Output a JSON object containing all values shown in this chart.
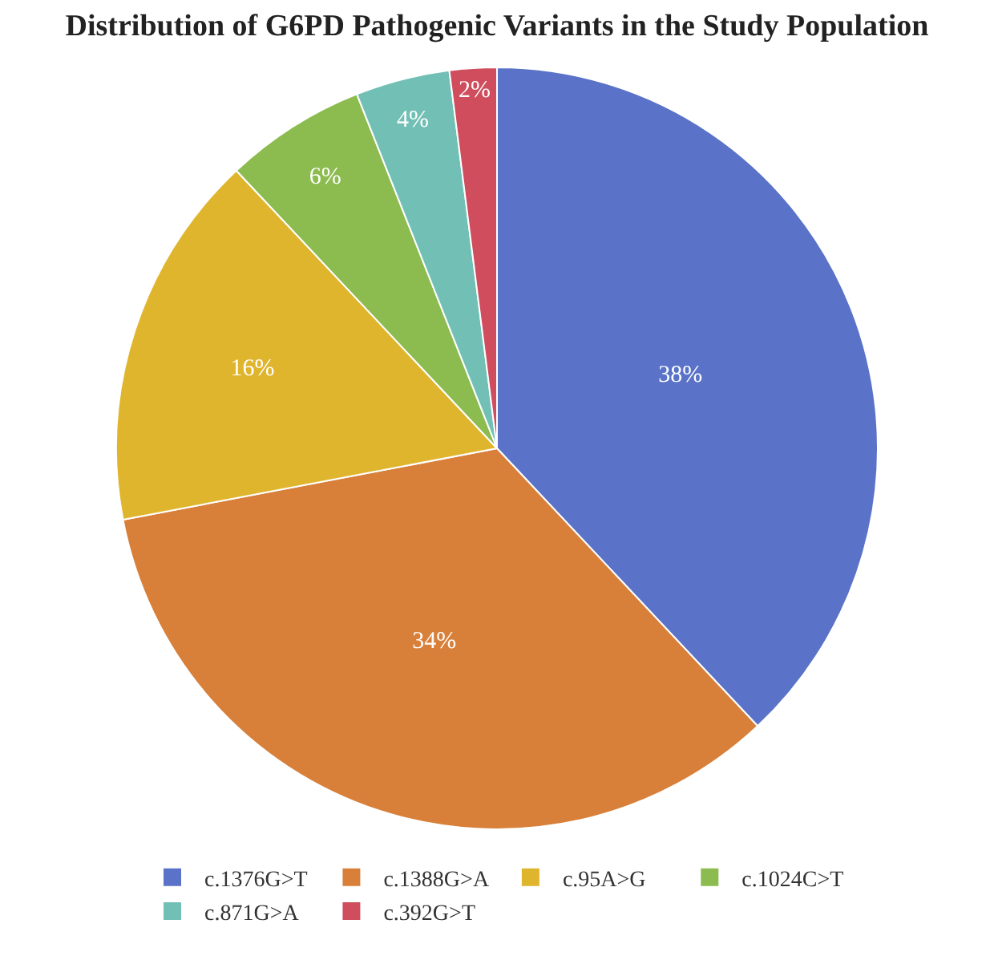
{
  "chart_data": {
    "type": "pie",
    "title": "Distribution of G6PD Pathogenic Variants in the Study Population",
    "categories": [
      "c.1376G>T",
      "c.1388G>A",
      "c.95A>G",
      "c.1024C>T",
      "c.871G>A",
      "c.392G>T"
    ],
    "values": [
      38,
      34,
      16,
      6,
      4,
      2
    ],
    "value_labels": [
      "38%",
      "34%",
      "16%",
      "6%",
      "4%",
      "2%"
    ],
    "colors": [
      "#5a73c8",
      "#d8803a",
      "#e0b52e",
      "#8cbb4f",
      "#72c0b5",
      "#cf4d5d"
    ],
    "legend": "bottom"
  }
}
